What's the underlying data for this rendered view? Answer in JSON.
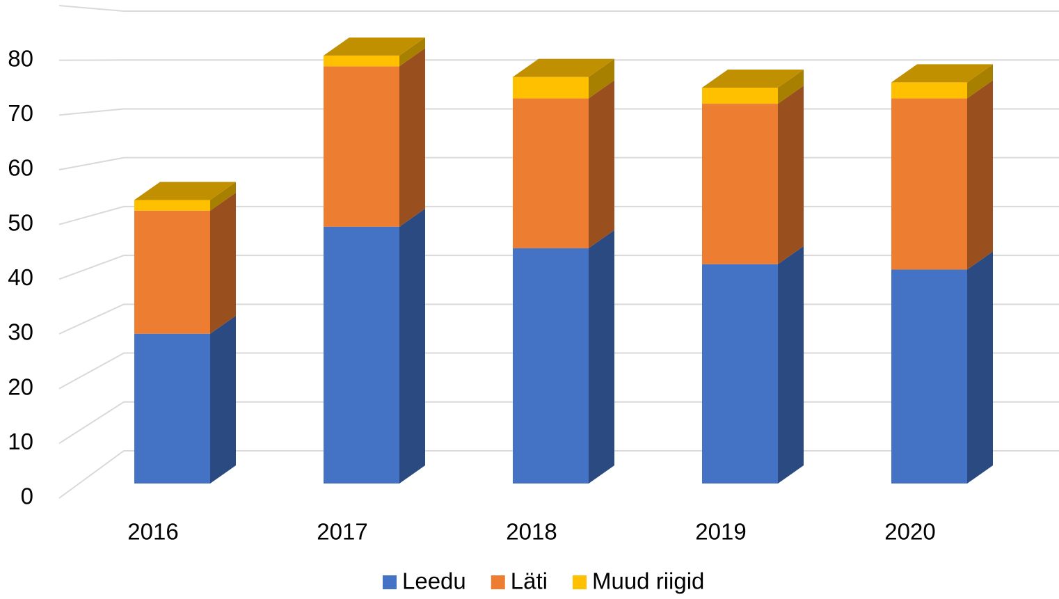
{
  "chart_data": {
    "type": "bar3d-stacked",
    "categories": [
      "2016",
      "2017",
      "2018",
      "2019",
      "2020"
    ],
    "series": [
      {
        "name": "Leedu",
        "color": "#4472c4",
        "side": "#2c4a82",
        "values": [
          28,
          48,
          44,
          41,
          40
        ]
      },
      {
        "name": "Läti",
        "color": "#ed7d31",
        "side": "#9a4f1e",
        "values": [
          23,
          30,
          28,
          30,
          32
        ]
      },
      {
        "name": "Muud riigid",
        "color": "#ffc000",
        "side": "#a88000",
        "top": "#c09000",
        "values": [
          2,
          2,
          4,
          3,
          3
        ]
      }
    ],
    "ylim": [
      0,
      90
    ],
    "yticks": [
      0,
      10,
      20,
      30,
      40,
      50,
      60,
      70,
      80
    ],
    "grid": true,
    "legend": "bottom"
  }
}
